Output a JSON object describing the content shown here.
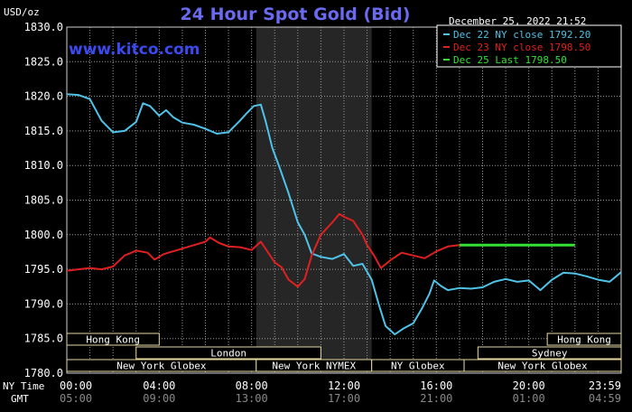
{
  "chart_data": {
    "type": "line",
    "title": "24 Hour Spot Gold (Bid)",
    "ylabel": "USD/oz",
    "watermark": "www.kitco.com",
    "timestamp": "December 25, 2022 21:52",
    "ylim": [
      1780,
      1830
    ],
    "y_ticks": [
      "1830.0",
      "1825.0",
      "1820.0",
      "1815.0",
      "1810.0",
      "1805.0",
      "1800.0",
      "1795.0",
      "1790.0",
      "1785.0",
      "1780.0"
    ],
    "x_label_ny": "NY Time",
    "x_label_gmt": "GMT",
    "x_ticks_ny": [
      "00:00",
      "04:00",
      "08:00",
      "12:00",
      "16:00",
      "20:00",
      "23:59"
    ],
    "x_ticks_gmt": [
      "05:00",
      "09:00",
      "13:00",
      "17:00",
      "21:00",
      "01:00",
      "04:59"
    ],
    "x_tick_hours": [
      0,
      4,
      8,
      12,
      16,
      20,
      24
    ],
    "xlim_hours": [
      0,
      24
    ],
    "shaded_session_hours": [
      8.2,
      13.2
    ],
    "legend_placement": "top-right",
    "series": [
      {
        "name": "Dec 22 NY close 1792.20",
        "color": "#4fc3e8",
        "points": [
          [
            0,
            1820.3
          ],
          [
            0.5,
            1820.2
          ],
          [
            1.0,
            1819.6
          ],
          [
            1.5,
            1816.5
          ],
          [
            2.0,
            1814.8
          ],
          [
            2.5,
            1815.0
          ],
          [
            3.0,
            1816.3
          ],
          [
            3.3,
            1819.0
          ],
          [
            3.6,
            1818.6
          ],
          [
            4.0,
            1817.2
          ],
          [
            4.3,
            1818.0
          ],
          [
            4.6,
            1817.0
          ],
          [
            5.0,
            1816.2
          ],
          [
            5.5,
            1815.9
          ],
          [
            6.0,
            1815.3
          ],
          [
            6.5,
            1814.6
          ],
          [
            7.0,
            1814.8
          ],
          [
            7.5,
            1816.5
          ],
          [
            7.8,
            1817.6
          ],
          [
            8.1,
            1818.6
          ],
          [
            8.4,
            1818.8
          ],
          [
            8.6,
            1816.5
          ],
          [
            8.9,
            1812.5
          ],
          [
            9.2,
            1809.8
          ],
          [
            9.6,
            1806.0
          ],
          [
            10.0,
            1801.8
          ],
          [
            10.3,
            1800.0
          ],
          [
            10.6,
            1797.3
          ],
          [
            11.0,
            1796.8
          ],
          [
            11.5,
            1796.5
          ],
          [
            12.0,
            1797.2
          ],
          [
            12.4,
            1795.5
          ],
          [
            12.8,
            1795.8
          ],
          [
            13.2,
            1793.5
          ],
          [
            13.5,
            1790.0
          ],
          [
            13.8,
            1786.8
          ],
          [
            14.2,
            1785.6
          ],
          [
            14.6,
            1786.5
          ],
          [
            15.0,
            1787.2
          ],
          [
            15.4,
            1789.5
          ],
          [
            15.7,
            1791.5
          ],
          [
            15.9,
            1793.4
          ],
          [
            16.2,
            1792.6
          ],
          [
            16.5,
            1792.0
          ],
          [
            17.0,
            1792.3
          ],
          [
            17.5,
            1792.2
          ],
          [
            18.0,
            1792.4
          ],
          [
            18.5,
            1793.2
          ],
          [
            19.0,
            1793.6
          ],
          [
            19.5,
            1793.2
          ],
          [
            20.0,
            1793.4
          ],
          [
            20.5,
            1792.0
          ],
          [
            21.0,
            1793.5
          ],
          [
            21.5,
            1794.5
          ],
          [
            22.0,
            1794.4
          ],
          [
            22.5,
            1794.0
          ],
          [
            23.0,
            1793.5
          ],
          [
            23.5,
            1793.2
          ],
          [
            24.0,
            1794.6
          ]
        ]
      },
      {
        "name": "Dec 23 NY close 1798.50",
        "color": "#e02020",
        "points": [
          [
            0,
            1794.8
          ],
          [
            0.5,
            1795.0
          ],
          [
            1.0,
            1795.2
          ],
          [
            1.5,
            1795.0
          ],
          [
            2.0,
            1795.4
          ],
          [
            2.5,
            1797.0
          ],
          [
            3.0,
            1797.7
          ],
          [
            3.5,
            1797.4
          ],
          [
            3.8,
            1796.4
          ],
          [
            4.2,
            1797.2
          ],
          [
            4.8,
            1797.8
          ],
          [
            5.5,
            1798.5
          ],
          [
            6.0,
            1799.0
          ],
          [
            6.2,
            1799.6
          ],
          [
            6.6,
            1798.8
          ],
          [
            7.0,
            1798.3
          ],
          [
            7.5,
            1798.2
          ],
          [
            8.0,
            1797.8
          ],
          [
            8.4,
            1799.0
          ],
          [
            8.7,
            1797.5
          ],
          [
            9.0,
            1796.0
          ],
          [
            9.3,
            1795.3
          ],
          [
            9.6,
            1793.5
          ],
          [
            10.0,
            1792.5
          ],
          [
            10.3,
            1793.6
          ],
          [
            10.6,
            1797.0
          ],
          [
            11.0,
            1800.0
          ],
          [
            11.5,
            1801.8
          ],
          [
            11.8,
            1803.0
          ],
          [
            12.0,
            1802.6
          ],
          [
            12.4,
            1802.0
          ],
          [
            12.8,
            1800.0
          ],
          [
            13.0,
            1798.5
          ],
          [
            13.3,
            1797.0
          ],
          [
            13.6,
            1795.2
          ],
          [
            14.0,
            1796.3
          ],
          [
            14.5,
            1797.4
          ],
          [
            15.0,
            1797.0
          ],
          [
            15.5,
            1796.6
          ],
          [
            16.0,
            1797.6
          ],
          [
            16.5,
            1798.3
          ],
          [
            17.0,
            1798.5
          ]
        ]
      },
      {
        "name": "Dec 25 Last 1798.50",
        "color": "#33e033",
        "points": [
          [
            17.0,
            1798.5
          ],
          [
            22.0,
            1798.5
          ]
        ]
      }
    ],
    "sessions": [
      {
        "name": "Hong Kong",
        "row": 0,
        "start": 0,
        "end": 4.0
      },
      {
        "name": "Hong Kong",
        "row": 0,
        "start": 20.8,
        "end": 24.0
      },
      {
        "name": "London",
        "row": 1,
        "start": 3.0,
        "end": 11.0
      },
      {
        "name": "Sydney",
        "row": 1,
        "start": 17.8,
        "end": 24.0
      },
      {
        "name": "New York Globex",
        "row": 2,
        "start": 0,
        "end": 8.2
      },
      {
        "name": "New York NYMEX",
        "row": 2,
        "start": 8.2,
        "end": 13.2
      },
      {
        "name": "NY Globex",
        "row": 2,
        "start": 13.2,
        "end": 17.2
      },
      {
        "name": "New York Globex",
        "row": 2,
        "start": 17.2,
        "end": 24.0
      }
    ]
  }
}
